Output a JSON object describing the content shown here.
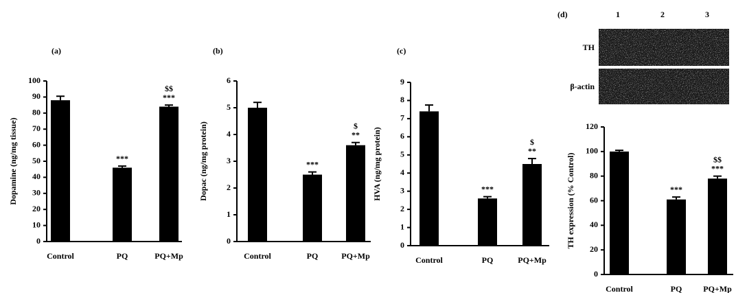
{
  "chart_data": [
    {
      "type": "bar",
      "title": "(a)",
      "y_label": "Dopamine (ng/mg tissue)",
      "categories": [
        "Control",
        "PQ",
        "PQ+Mp"
      ],
      "values": [
        88,
        46,
        84
      ],
      "errors": [
        2.5,
        1,
        1
      ],
      "annotations": [
        [],
        [
          "***"
        ],
        [
          "$$",
          "***"
        ]
      ],
      "color": "#000000",
      "ylim": [
        0,
        100
      ],
      "yticks": [
        0,
        10,
        20,
        30,
        40,
        50,
        60,
        70,
        80,
        90,
        100
      ]
    },
    {
      "type": "bar",
      "title": "(b)",
      "y_label": "Dopac (ng/mg protein)",
      "categories": [
        "Control",
        "PQ",
        "PQ+Mp"
      ],
      "values": [
        5.0,
        2.5,
        3.6
      ],
      "errors": [
        0.2,
        0.1,
        0.1
      ],
      "annotations": [
        [],
        [
          "***"
        ],
        [
          "$",
          "**"
        ]
      ],
      "color": "#000000",
      "ylim": [
        0,
        6
      ],
      "yticks": [
        0,
        1,
        2,
        3,
        4,
        5,
        6
      ]
    },
    {
      "type": "bar",
      "title": "(c)",
      "y_label": "HVA (ng/mg protein)",
      "categories": [
        "Control",
        "PQ",
        "PQ+Mp"
      ],
      "values": [
        7.4,
        2.6,
        4.5
      ],
      "errors": [
        0.35,
        0.1,
        0.3
      ],
      "annotations": [
        [],
        [
          "***"
        ],
        [
          "$",
          "**"
        ]
      ],
      "color": "#000000",
      "ylim": [
        0,
        9
      ],
      "yticks": [
        0,
        1,
        2,
        3,
        4,
        5,
        6,
        7,
        8,
        9
      ]
    },
    {
      "type": "bar",
      "title": "(d)",
      "y_label": "TH expression (% Control)",
      "categories": [
        "Control",
        "PQ",
        "PQ+Mp"
      ],
      "values": [
        100,
        61,
        78
      ],
      "errors": [
        1,
        2,
        2
      ],
      "annotations": [
        [],
        [
          "***"
        ],
        [
          "$$",
          "***"
        ]
      ],
      "color": "#000000",
      "ylim": [
        0,
        120
      ],
      "yticks": [
        0,
        20,
        40,
        60,
        80,
        100,
        120
      ],
      "blot": {
        "lanes": [
          "1",
          "2",
          "3"
        ],
        "rows": [
          "TH",
          "β-actin"
        ]
      }
    }
  ]
}
